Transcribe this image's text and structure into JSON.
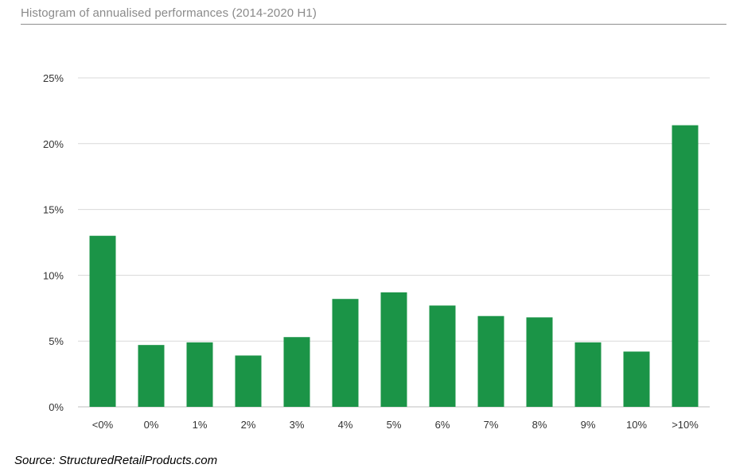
{
  "title": "Histogram of annualised performances (2014-2020 H1)",
  "source": "Source: StructuredRetailProducts.com",
  "colors": {
    "bar": "#1b9447",
    "grid": "#d9d9d9",
    "axis": "#bfbfbf",
    "title": "#8a8a8a"
  },
  "chart_data": {
    "type": "bar",
    "title": "Histogram of annualised performances (2014-2020 H1)",
    "xlabel": "",
    "ylabel": "",
    "categories": [
      "<0%",
      "0%",
      "1%",
      "2%",
      "3%",
      "4%",
      "5%",
      "6%",
      "7%",
      "8%",
      "9%",
      "10%",
      ">10%"
    ],
    "values": [
      13.0,
      4.7,
      4.9,
      3.9,
      5.3,
      8.2,
      8.7,
      7.7,
      6.9,
      6.8,
      4.9,
      4.2,
      21.4
    ],
    "ylim": [
      0,
      25
    ],
    "yticks": [
      0,
      5,
      10,
      15,
      20,
      25
    ],
    "ytick_labels": [
      "0%",
      "5%",
      "10%",
      "15%",
      "20%",
      "25%"
    ],
    "grid": true,
    "legend": "none"
  }
}
